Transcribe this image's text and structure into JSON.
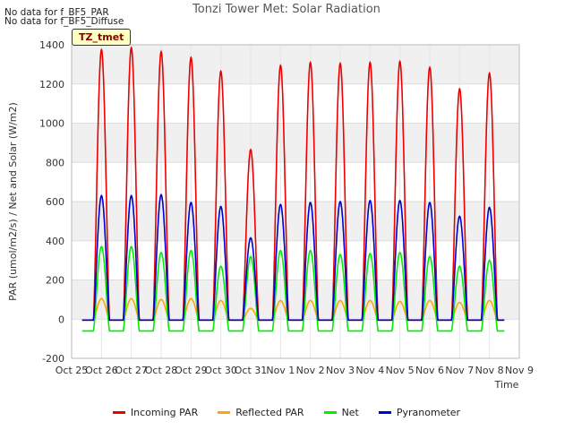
{
  "notes": [
    "No data for f_BF5_PAR",
    "No data for f_BF5_Diffuse"
  ],
  "badge": "TZ_tmet",
  "chart_data": {
    "type": "line",
    "title": "Tonzi Tower Met: Solar Radiation",
    "xlabel": "Time",
    "ylabel": "PAR (umol/m2/s) / Net and Solar (W/m2)",
    "ylim": [
      -200,
      1400
    ],
    "yticks": [
      -200,
      0,
      200,
      400,
      600,
      800,
      1000,
      1200,
      1400
    ],
    "xlim": [
      0,
      15
    ],
    "xtick_labels": [
      "Oct 25",
      "Oct 26",
      "Oct 27",
      "Oct 28",
      "Oct 29",
      "Oct 30",
      "Oct 31",
      "Nov 1",
      "Nov 2",
      "Nov 3",
      "Nov 4",
      "Nov 5",
      "Nov 6",
      "Nov 7",
      "Nov 8",
      "Nov 9"
    ],
    "grid": true,
    "legend_position": "bottom",
    "series": [
      {
        "name": "Incoming PAR",
        "color": "#ee0000",
        "daily_peaks": [
          1380,
          1390,
          1370,
          1340,
          1270,
          870,
          1300,
          1315,
          1310,
          1315,
          1320,
          1290,
          1180,
          1260
        ],
        "night_value": -5
      },
      {
        "name": "Reflected PAR",
        "color": "#ffa500",
        "daily_peaks": [
          110,
          110,
          105,
          110,
          100,
          60,
          100,
          100,
          100,
          100,
          95,
          100,
          90,
          100
        ],
        "night_value": -5
      },
      {
        "name": "Net",
        "color": "#00ee00",
        "daily_peaks": [
          430,
          430,
          400,
          410,
          330,
          380,
          410,
          410,
          390,
          395,
          400,
          380,
          330,
          360
        ],
        "night_value": -60
      },
      {
        "name": "Pyranometer",
        "color": "#0000cc",
        "daily_peaks": [
          635,
          635,
          640,
          600,
          580,
          420,
          590,
          600,
          605,
          610,
          610,
          600,
          530,
          575
        ],
        "night_value": -5
      }
    ],
    "day_centers": [
      1.0,
      2.0,
      3.0,
      4.0,
      5.0,
      6.0,
      7.0,
      8.0,
      9.0,
      10.0,
      11.0,
      12.0,
      13.0,
      14.0
    ]
  }
}
